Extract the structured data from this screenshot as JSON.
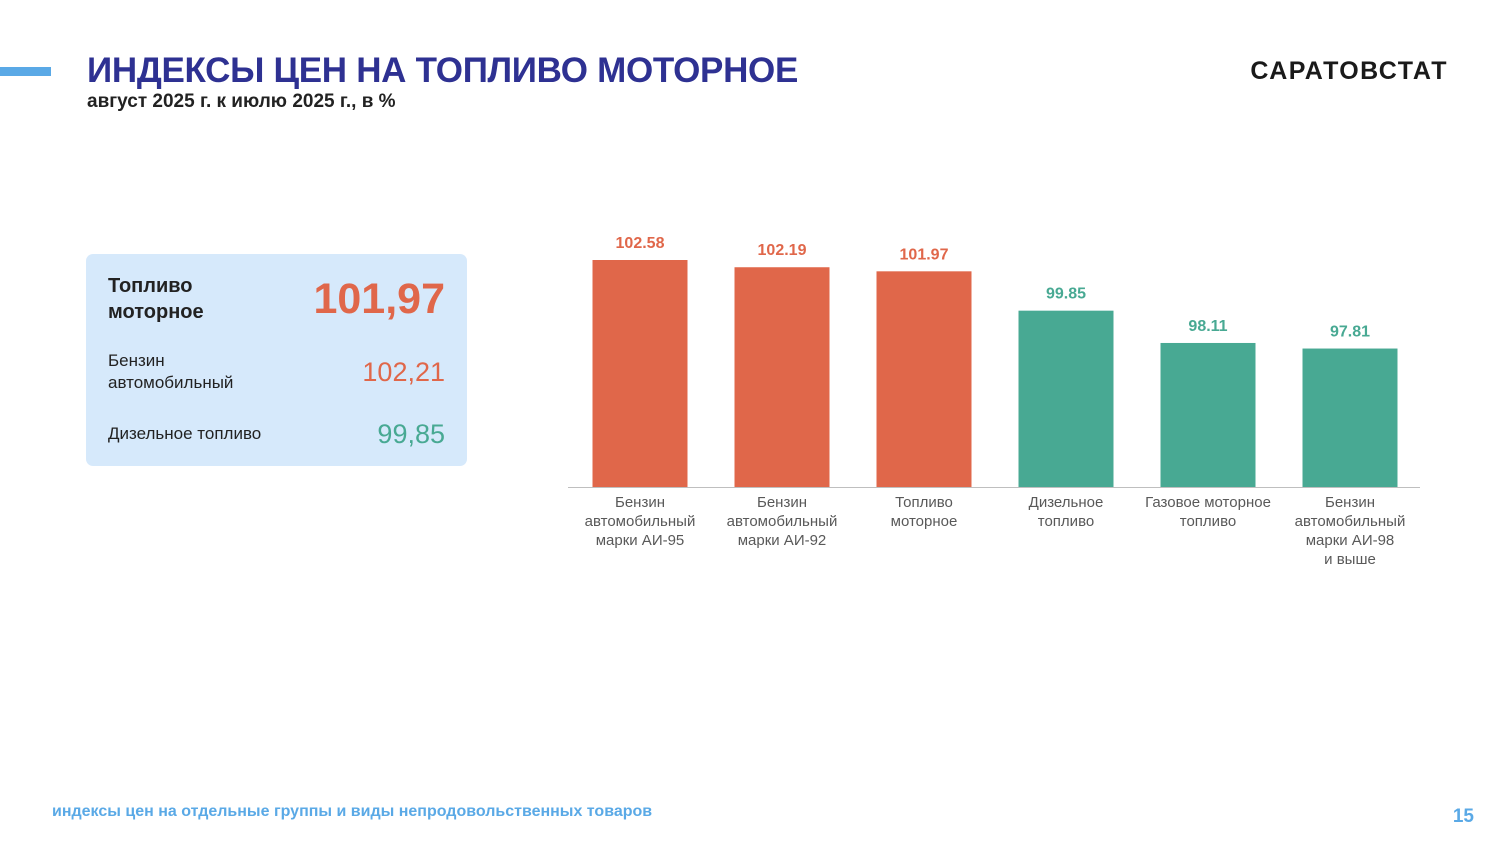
{
  "header": {
    "title": "ИНДЕКСЫ ЦЕН НА ТОПЛИВО МОТОРНОЕ",
    "subtitle": "август 2025 г. к июлю 2025 г., в %",
    "brand": "САРАТОВСТАТ"
  },
  "summary": {
    "rows": [
      {
        "label": "Топливо моторное",
        "value": "101,97",
        "color": "#e0674a"
      },
      {
        "label": "Бензин автомобильный",
        "value": "102,21",
        "color": "#e0674a"
      },
      {
        "label": "Дизельное топливо",
        "value": "99,85",
        "color": "#48a993"
      }
    ]
  },
  "colors": {
    "orange": "#e0674a",
    "teal": "#48a993",
    "accent": "#2e3192",
    "light_blue": "#5aa9e6",
    "card_bg": "#d6e9fb"
  },
  "chart_data": {
    "type": "bar",
    "categories": [
      [
        "Бензин",
        "автомобильный",
        "марки АИ-95"
      ],
      [
        "Бензин",
        "автомобильный",
        "марки АИ-92"
      ],
      [
        "Топливо",
        "моторное"
      ],
      [
        "Дизельное",
        "топливо"
      ],
      [
        "Газовое моторное",
        "топливо"
      ],
      [
        "Бензин",
        "автомобильный",
        "марки АИ-98",
        "и выше"
      ]
    ],
    "values": [
      102.58,
      102.19,
      101.97,
      99.85,
      98.11,
      97.81
    ],
    "value_labels": [
      "102.58",
      "102.19",
      "101.97",
      "99.85",
      "98.11",
      "97.81"
    ],
    "bar_colors": [
      "#e0674a",
      "#e0674a",
      "#e0674a",
      "#48a993",
      "#48a993",
      "#48a993"
    ]
  },
  "footer": {
    "text": "индексы цен на отдельные группы и виды непродовольственных товаров",
    "page_number": "15"
  }
}
